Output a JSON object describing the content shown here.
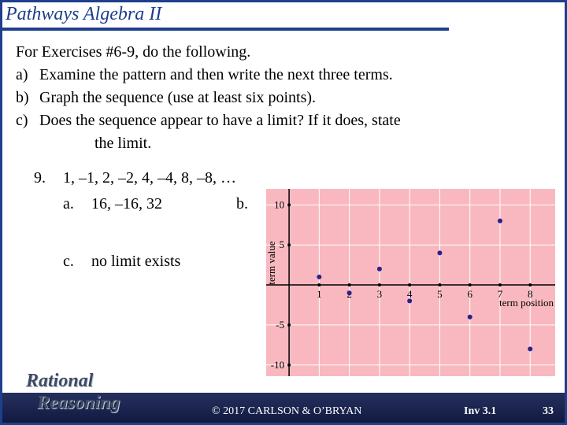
{
  "header": {
    "title": "Pathways Algebra II"
  },
  "instructions": {
    "intro": "For Exercises #6-9, do the following.",
    "items": [
      {
        "marker": "a)",
        "text": "Examine the pattern and then write the next three terms."
      },
      {
        "marker": "b)",
        "text": "Graph the sequence (use at least six points)."
      },
      {
        "marker": "c)",
        "text": "Does the sequence appear to have a limit? If it does, state",
        "continuation": "the limit."
      }
    ]
  },
  "problem": {
    "number": "9.",
    "sequence": "1, –1, 2, –2, 4, –4, 8, –8, …",
    "answers": [
      {
        "marker": "a.",
        "text": "16, –16, 32"
      },
      {
        "marker": "b."
      },
      {
        "marker": "c.",
        "text": "no limit exists"
      }
    ]
  },
  "chart_data": {
    "type": "scatter",
    "x_label": "term position",
    "y_label": "term value",
    "x": [
      1,
      2,
      3,
      4,
      5,
      6,
      7,
      8
    ],
    "values": [
      1,
      -1,
      2,
      -2,
      4,
      -4,
      8,
      -8
    ],
    "color": "#2a1f8f",
    "background": "#f9b8bf",
    "grid": true,
    "xlim": [
      -0.76,
      8.83
    ],
    "ylim": [
      -11.4,
      12
    ],
    "xticks": [
      1,
      2,
      3,
      4,
      5,
      6,
      7,
      8
    ],
    "yticks": [
      -10,
      -5,
      5,
      10
    ]
  },
  "footer": {
    "logo_top": "Rational",
    "logo_bottom": "Reasoning",
    "copyright": "© 2017 CARLSON & O’BRYAN",
    "investigation": "Inv 3.1",
    "page": "33"
  }
}
